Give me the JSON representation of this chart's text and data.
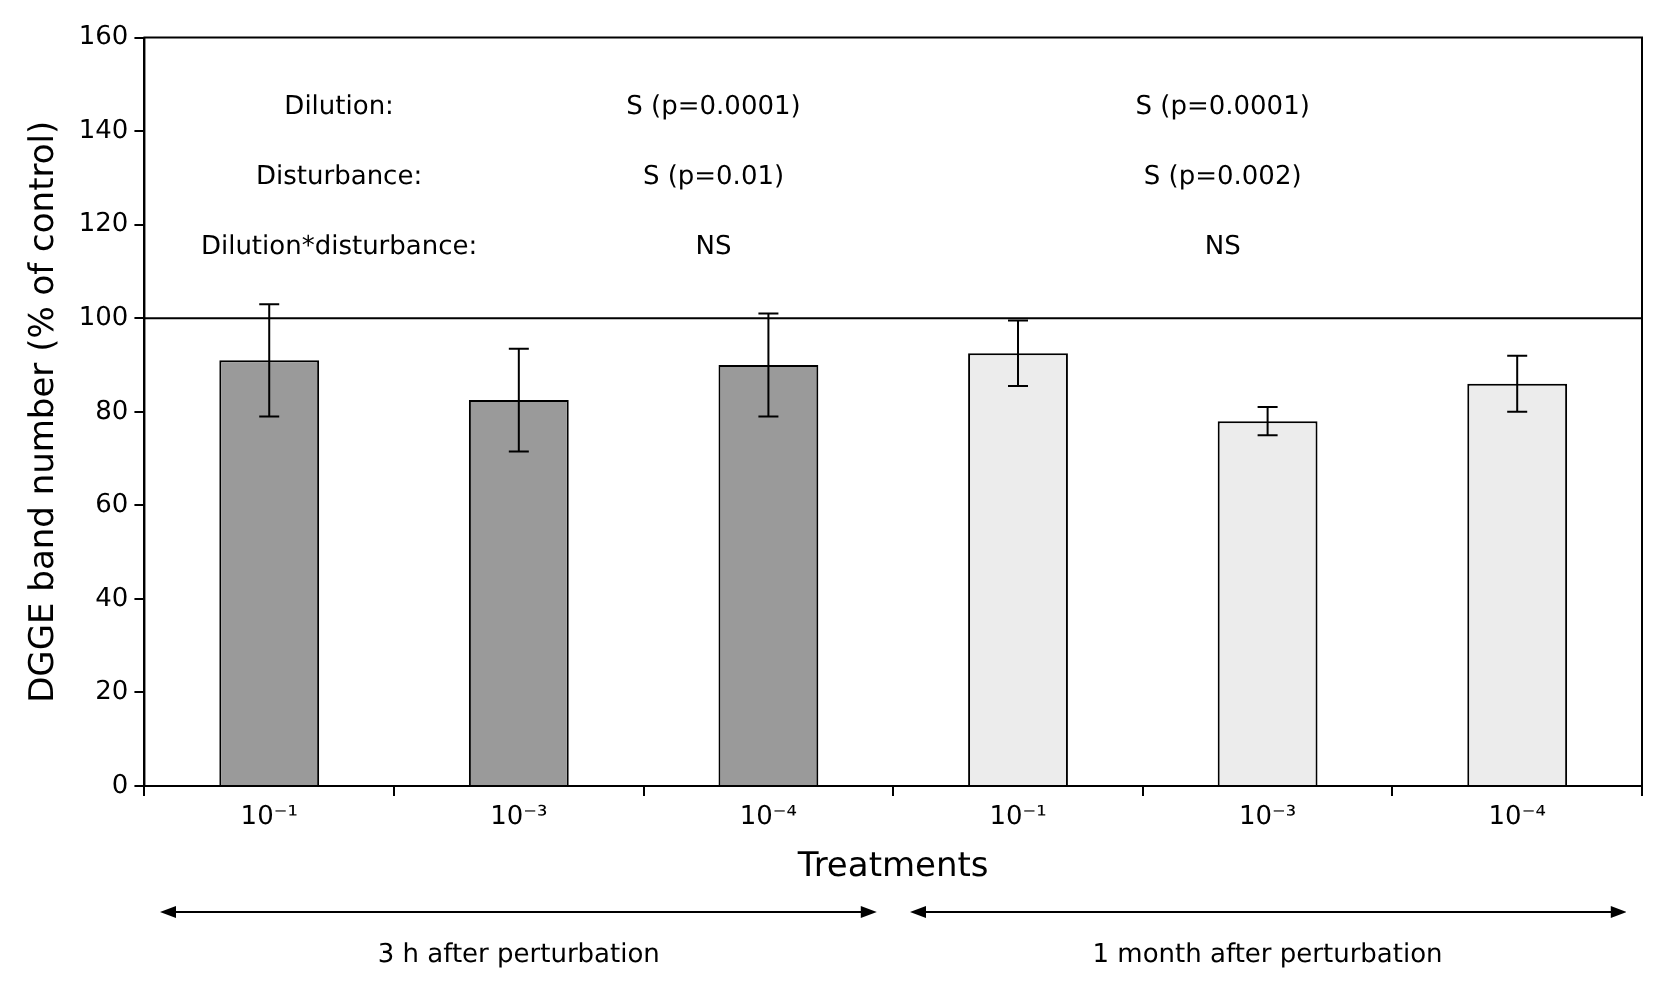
{
  "chart_data": {
    "type": "bar",
    "xlabel": "Treatments",
    "ylabel": "DGGE band number (% of control)",
    "categories": [
      "10⁻¹",
      "10⁻³",
      "10⁻⁴",
      "10⁻¹",
      "10⁻³",
      "10⁻⁴"
    ],
    "values": [
      91,
      82.5,
      90,
      92.5,
      78,
      86
    ],
    "errors": [
      12,
      11,
      11,
      7,
      3,
      6
    ],
    "colors": [
      "#9a9a9a",
      "#9a9a9a",
      "#9a9a9a",
      "#ececec",
      "#ececec",
      "#ececec"
    ],
    "ylim": [
      0,
      160
    ],
    "yticks": [
      0,
      20,
      40,
      60,
      80,
      100,
      120,
      140,
      160
    ],
    "grid": false,
    "legend": false,
    "ref_lines": [
      {
        "axis": "y",
        "value": 100,
        "color": "#000000"
      }
    ],
    "annotations": [
      "Dilution:",
      "S (p=0.0001)",
      "S (p=0.0001)",
      "Disturbance:",
      "S (p=0.01)",
      "S (p=0.002)",
      "Dilution*disturbance:",
      "NS",
      "NS",
      "3 h after perturbation",
      "1 month after perturbation"
    ]
  }
}
